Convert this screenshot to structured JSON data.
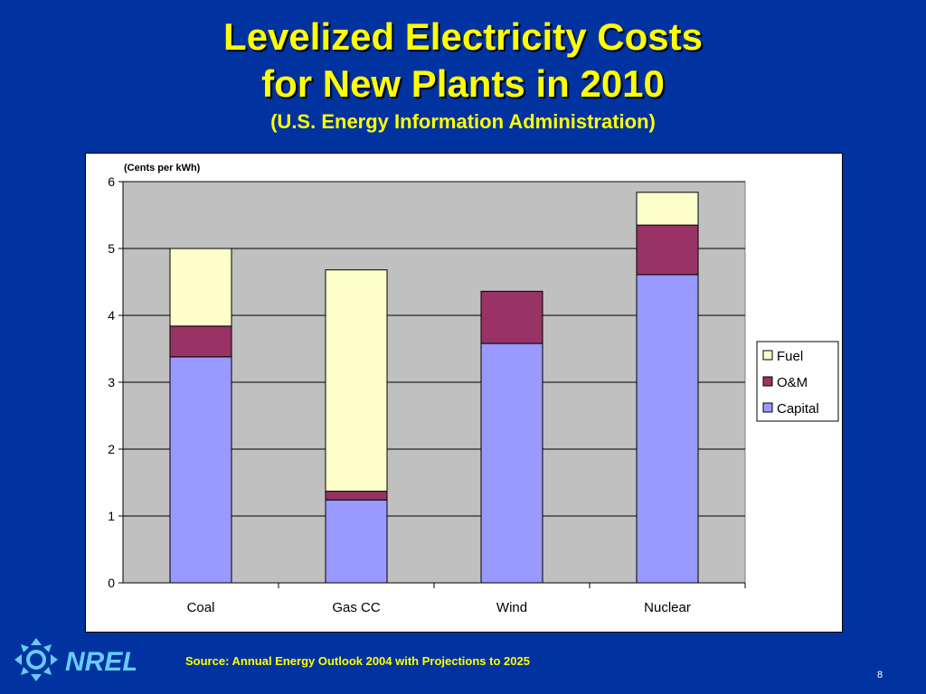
{
  "slide": {
    "title_line1": "Levelized Electricity Costs",
    "title_line2": "for New Plants in 2010",
    "subtitle": "(U.S. Energy Information Administration)",
    "source": "Source: Annual Energy Outlook 2004 with Projections to 2025",
    "page_number": "8",
    "logo_text": "NREL",
    "background_color": "#0033a0",
    "title_color": "#ffff00"
  },
  "chart_data": {
    "type": "bar",
    "stacked": true,
    "categories": [
      "Coal",
      "Gas CC",
      "Wind",
      "Nuclear"
    ],
    "series": [
      {
        "name": "Capital",
        "values": [
          3.38,
          1.24,
          3.58,
          4.61
        ],
        "color": "#9999ff"
      },
      {
        "name": "O&M",
        "values": [
          0.46,
          0.13,
          0.78,
          0.74
        ],
        "color": "#993366"
      },
      {
        "name": "Fuel",
        "values": [
          1.16,
          3.31,
          0,
          0.49
        ],
        "color": "#ffffcc"
      }
    ],
    "unit_label": "(Cents per kWh)",
    "ylim": [
      0,
      6
    ],
    "yticks": [
      "0",
      "1",
      "2",
      "3",
      "4",
      "5",
      "6"
    ],
    "grid": true,
    "plot_background": "#c0c0c0",
    "legend_position": "right",
    "legend_order": [
      "Fuel",
      "O&M",
      "Capital"
    ]
  }
}
